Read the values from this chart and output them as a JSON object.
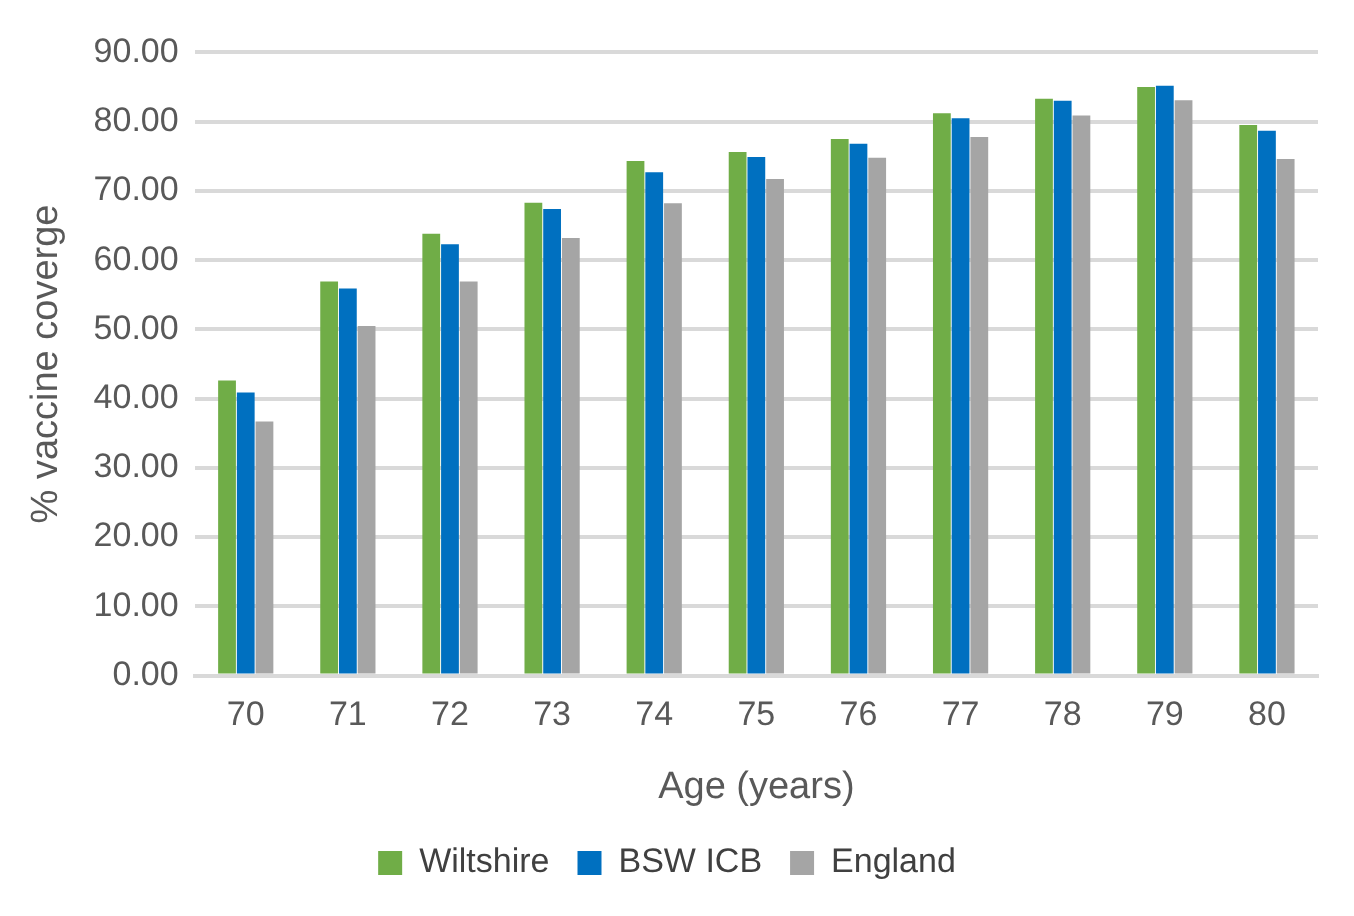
{
  "chart_data": {
    "type": "bar",
    "xlabel": "Age (years)",
    "ylabel": "% vaccine coverge",
    "categories": [
      "70",
      "71",
      "72",
      "73",
      "74",
      "75",
      "76",
      "77",
      "78",
      "79",
      "80"
    ],
    "series": [
      {
        "name": "Wiltshire",
        "color": "#70ad47",
        "values": [
          42.6,
          56.9,
          63.8,
          68.3,
          74.3,
          75.6,
          77.5,
          81.2,
          83.3,
          85.0,
          79.5
        ]
      },
      {
        "name": "BSW ICB",
        "color": "#0070c0",
        "values": [
          40.9,
          55.9,
          62.3,
          67.4,
          72.7,
          74.9,
          76.8,
          80.5,
          83.0,
          85.2,
          78.7
        ]
      },
      {
        "name": "England",
        "color": "#a5a5a5",
        "values": [
          36.7,
          50.5,
          56.9,
          63.2,
          68.2,
          71.7,
          74.8,
          77.8,
          80.9,
          83.1,
          74.6
        ]
      }
    ],
    "ylim": [
      0,
      90
    ],
    "yticks": [
      {
        "value": 0,
        "label": "0.00"
      },
      {
        "value": 10,
        "label": "10.00"
      },
      {
        "value": 20,
        "label": "20.00"
      },
      {
        "value": 30,
        "label": "30.00"
      },
      {
        "value": 40,
        "label": "40.00"
      },
      {
        "value": 50,
        "label": "50.00"
      },
      {
        "value": 60,
        "label": "60.00"
      },
      {
        "value": 70,
        "label": "70.00"
      },
      {
        "value": 80,
        "label": "80.00"
      },
      {
        "value": 90,
        "label": "90.00"
      }
    ],
    "grid": "y",
    "legend": "bottom"
  }
}
